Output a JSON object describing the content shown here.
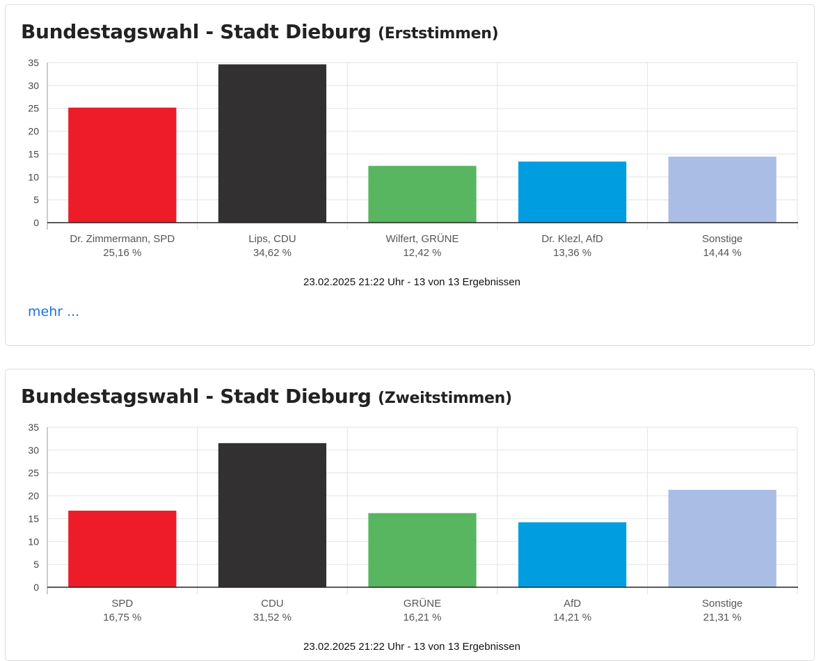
{
  "cards": [
    {
      "title_main": "Bundestagswahl - Stadt Dieburg",
      "title_sub": "(Erststimmen)",
      "more_label": "mehr ...",
      "chart_data": {
        "type": "bar",
        "categories": [
          "Dr. Zimmermann, SPD",
          "Lips, CDU",
          "Wilfert, GRÜNE",
          "Dr. Klezl, AfD",
          "Sonstige"
        ],
        "value_labels": [
          "25,16 %",
          "34,62 %",
          "12,42 %",
          "13,36 %",
          "14,44 %"
        ],
        "values": [
          25.16,
          34.62,
          12.42,
          13.36,
          14.44
        ],
        "colors": [
          "#ed1c28",
          "#323031",
          "#58b560",
          "#009ee0",
          "#aabde4"
        ],
        "ylim": [
          0,
          35
        ],
        "yticks": [
          "0",
          "5",
          "10",
          "15",
          "20",
          "25",
          "30",
          "35"
        ],
        "grid": true,
        "footer": "23.02.2025 21:22 Uhr - 13 von 13 Ergebnissen"
      }
    },
    {
      "title_main": "Bundestagswahl - Stadt Dieburg",
      "title_sub": "(Zweitstimmen)",
      "chart_data": {
        "type": "bar",
        "categories": [
          "SPD",
          "CDU",
          "GRÜNE",
          "AfD",
          "Sonstige"
        ],
        "value_labels": [
          "16,75 %",
          "31,52 %",
          "16,21 %",
          "14,21 %",
          "21,31 %"
        ],
        "values": [
          16.75,
          31.52,
          16.21,
          14.21,
          21.31
        ],
        "colors": [
          "#ed1c28",
          "#323031",
          "#58b560",
          "#009ee0",
          "#aabde4"
        ],
        "ylim": [
          0,
          35
        ],
        "yticks": [
          "0",
          "5",
          "10",
          "15",
          "20",
          "25",
          "30",
          "35"
        ],
        "grid": true,
        "footer": "23.02.2025 21:22 Uhr - 13 von 13 Ergebnissen"
      }
    }
  ]
}
